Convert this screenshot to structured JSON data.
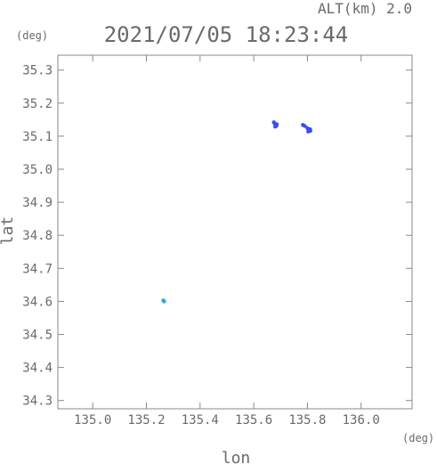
{
  "chart_data": {
    "type": "scatter",
    "header_right": "ALT(km) 2.0",
    "title": "2021/07/05 18:23:44",
    "xlabel": "lon",
    "ylabel": "lat",
    "x_unit": "(deg)",
    "y_unit": "(deg)",
    "xlim": [
      134.87,
      136.19
    ],
    "ylim": [
      34.275,
      35.345
    ],
    "x_ticks": [
      135.0,
      135.2,
      135.4,
      135.6,
      135.8,
      136.0
    ],
    "x_tick_labels": [
      "135.0",
      "135.2",
      "135.4",
      "135.6",
      "135.8",
      "136.0"
    ],
    "y_ticks": [
      34.3,
      34.4,
      34.5,
      34.6,
      34.7,
      34.8,
      34.9,
      35.0,
      35.1,
      35.2,
      35.3
    ],
    "y_tick_labels": [
      "34.3",
      "34.4",
      "34.5",
      "34.6",
      "34.7",
      "34.8",
      "34.9",
      "35.0",
      "35.1",
      "35.2",
      "35.3"
    ],
    "grid": false,
    "series": [
      {
        "color": "#3a4cf0",
        "points": [
          {
            "x": 135.675,
            "y": 35.142
          },
          {
            "x": 135.678,
            "y": 35.138
          },
          {
            "x": 135.681,
            "y": 35.135
          },
          {
            "x": 135.684,
            "y": 35.131
          },
          {
            "x": 135.68,
            "y": 35.129
          },
          {
            "x": 135.686,
            "y": 35.136
          },
          {
            "x": 135.783,
            "y": 35.134
          },
          {
            "x": 135.79,
            "y": 35.131
          },
          {
            "x": 135.8,
            "y": 35.124
          },
          {
            "x": 135.806,
            "y": 35.119
          },
          {
            "x": 135.811,
            "y": 35.116
          },
          {
            "x": 135.803,
            "y": 35.114
          },
          {
            "x": 135.81,
            "y": 35.121
          }
        ]
      },
      {
        "color": "#2aa6e0",
        "points": [
          {
            "x": 135.263,
            "y": 34.603
          },
          {
            "x": 135.266,
            "y": 34.6
          }
        ]
      }
    ]
  }
}
